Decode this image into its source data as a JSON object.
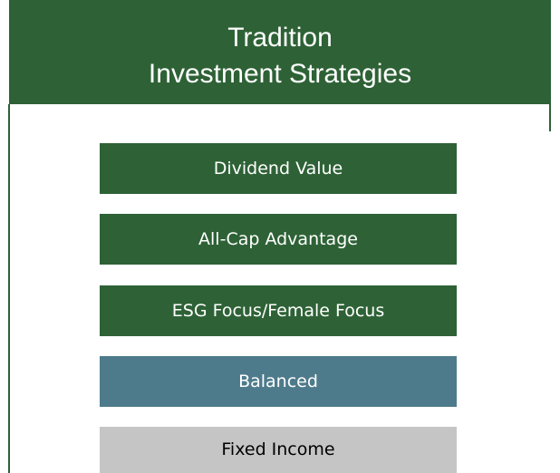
{
  "header": {
    "title_lines": [
      "Tradition",
      "Investment Strategies"
    ]
  },
  "items": [
    {
      "label": "Dividend Value"
    },
    {
      "label": "All-Cap Advantage"
    },
    {
      "label": "ESG Focus/Female Focus"
    },
    {
      "label": "Balanced"
    },
    {
      "label": "Fixed Income"
    }
  ]
}
